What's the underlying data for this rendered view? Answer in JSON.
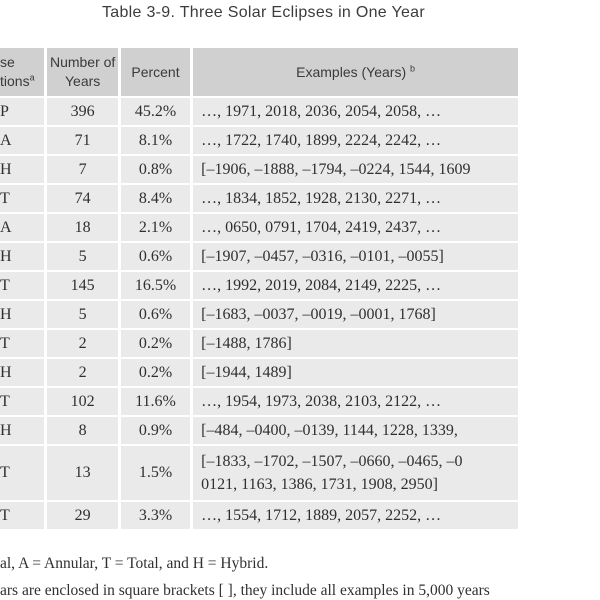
{
  "title": "Table 3-9. Three Solar Eclipses in One Year",
  "colors": {
    "header_bg": "#d0d0d0",
    "cell_bg": "#eaeaea",
    "page_bg": "#ffffff",
    "text": "#2f2f2f"
  },
  "table": {
    "header": {
      "col1_line1": "se",
      "col1_line2": "tions",
      "col1_sup": "a",
      "col2_line1": "Number of",
      "col2_line2": "Years",
      "col3": "Percent",
      "col4": "Examples (Years) ",
      "col4_sup": "b"
    },
    "rows": [
      {
        "combo": "P",
        "years": "396",
        "percent": "45.2%",
        "examples": [
          "…, 1971, 2018, 2036, 2054, 2058, …"
        ]
      },
      {
        "combo": "A",
        "years": "71",
        "percent": "8.1%",
        "examples": [
          "…, 1722, 1740, 1899, 2224, 2242, …"
        ]
      },
      {
        "combo": "H",
        "years": "7",
        "percent": "0.8%",
        "examples": [
          "[–1906, –1888, –1794, –0224, 1544, 1609"
        ]
      },
      {
        "combo": "T",
        "years": "74",
        "percent": "8.4%",
        "examples": [
          "…, 1834, 1852, 1928, 2130, 2271, …"
        ]
      },
      {
        "combo": "A",
        "years": "18",
        "percent": "2.1%",
        "examples": [
          "…, 0650, 0791, 1704, 2419, 2437, …"
        ]
      },
      {
        "combo": "H",
        "years": "5",
        "percent": "0.6%",
        "examples": [
          "[–1907, –0457, –0316, –0101, –0055]"
        ]
      },
      {
        "combo": "T",
        "years": "145",
        "percent": "16.5%",
        "examples": [
          "…, 1992, 2019, 2084, 2149, 2225, …"
        ]
      },
      {
        "combo": "H",
        "years": "5",
        "percent": "0.6%",
        "examples": [
          "[–1683, –0037, –0019, –0001, 1768]"
        ]
      },
      {
        "combo": "T",
        "years": "2",
        "percent": "0.2%",
        "examples": [
          "[–1488, 1786]"
        ]
      },
      {
        "combo": "H",
        "years": "2",
        "percent": "0.2%",
        "examples": [
          "[–1944, 1489]"
        ]
      },
      {
        "combo": "T",
        "years": "102",
        "percent": "11.6%",
        "examples": [
          "…, 1954, 1973, 2038, 2103, 2122, …"
        ]
      },
      {
        "combo": "H",
        "years": "8",
        "percent": "0.9%",
        "examples": [
          "[–484, –0400, –0139, 1144, 1228, 1339,"
        ]
      },
      {
        "combo": "T",
        "years": "13",
        "percent": "1.5%",
        "examples": [
          "[–1833, –1702, –1507, –0660, –0465, –0",
          "0121, 1163, 1386, 1731, 1908, 2950]"
        ]
      },
      {
        "combo": "T",
        "years": "29",
        "percent": "3.3%",
        "examples": [
          "…, 1554, 1712, 1889, 2057, 2252, …"
        ]
      }
    ]
  },
  "footnotes": {
    "a": "al, A = Annular, T = Total, and H = Hybrid.",
    "b": "ars are enclosed in square brackets [ ], they include all examples in 5,000 years"
  }
}
